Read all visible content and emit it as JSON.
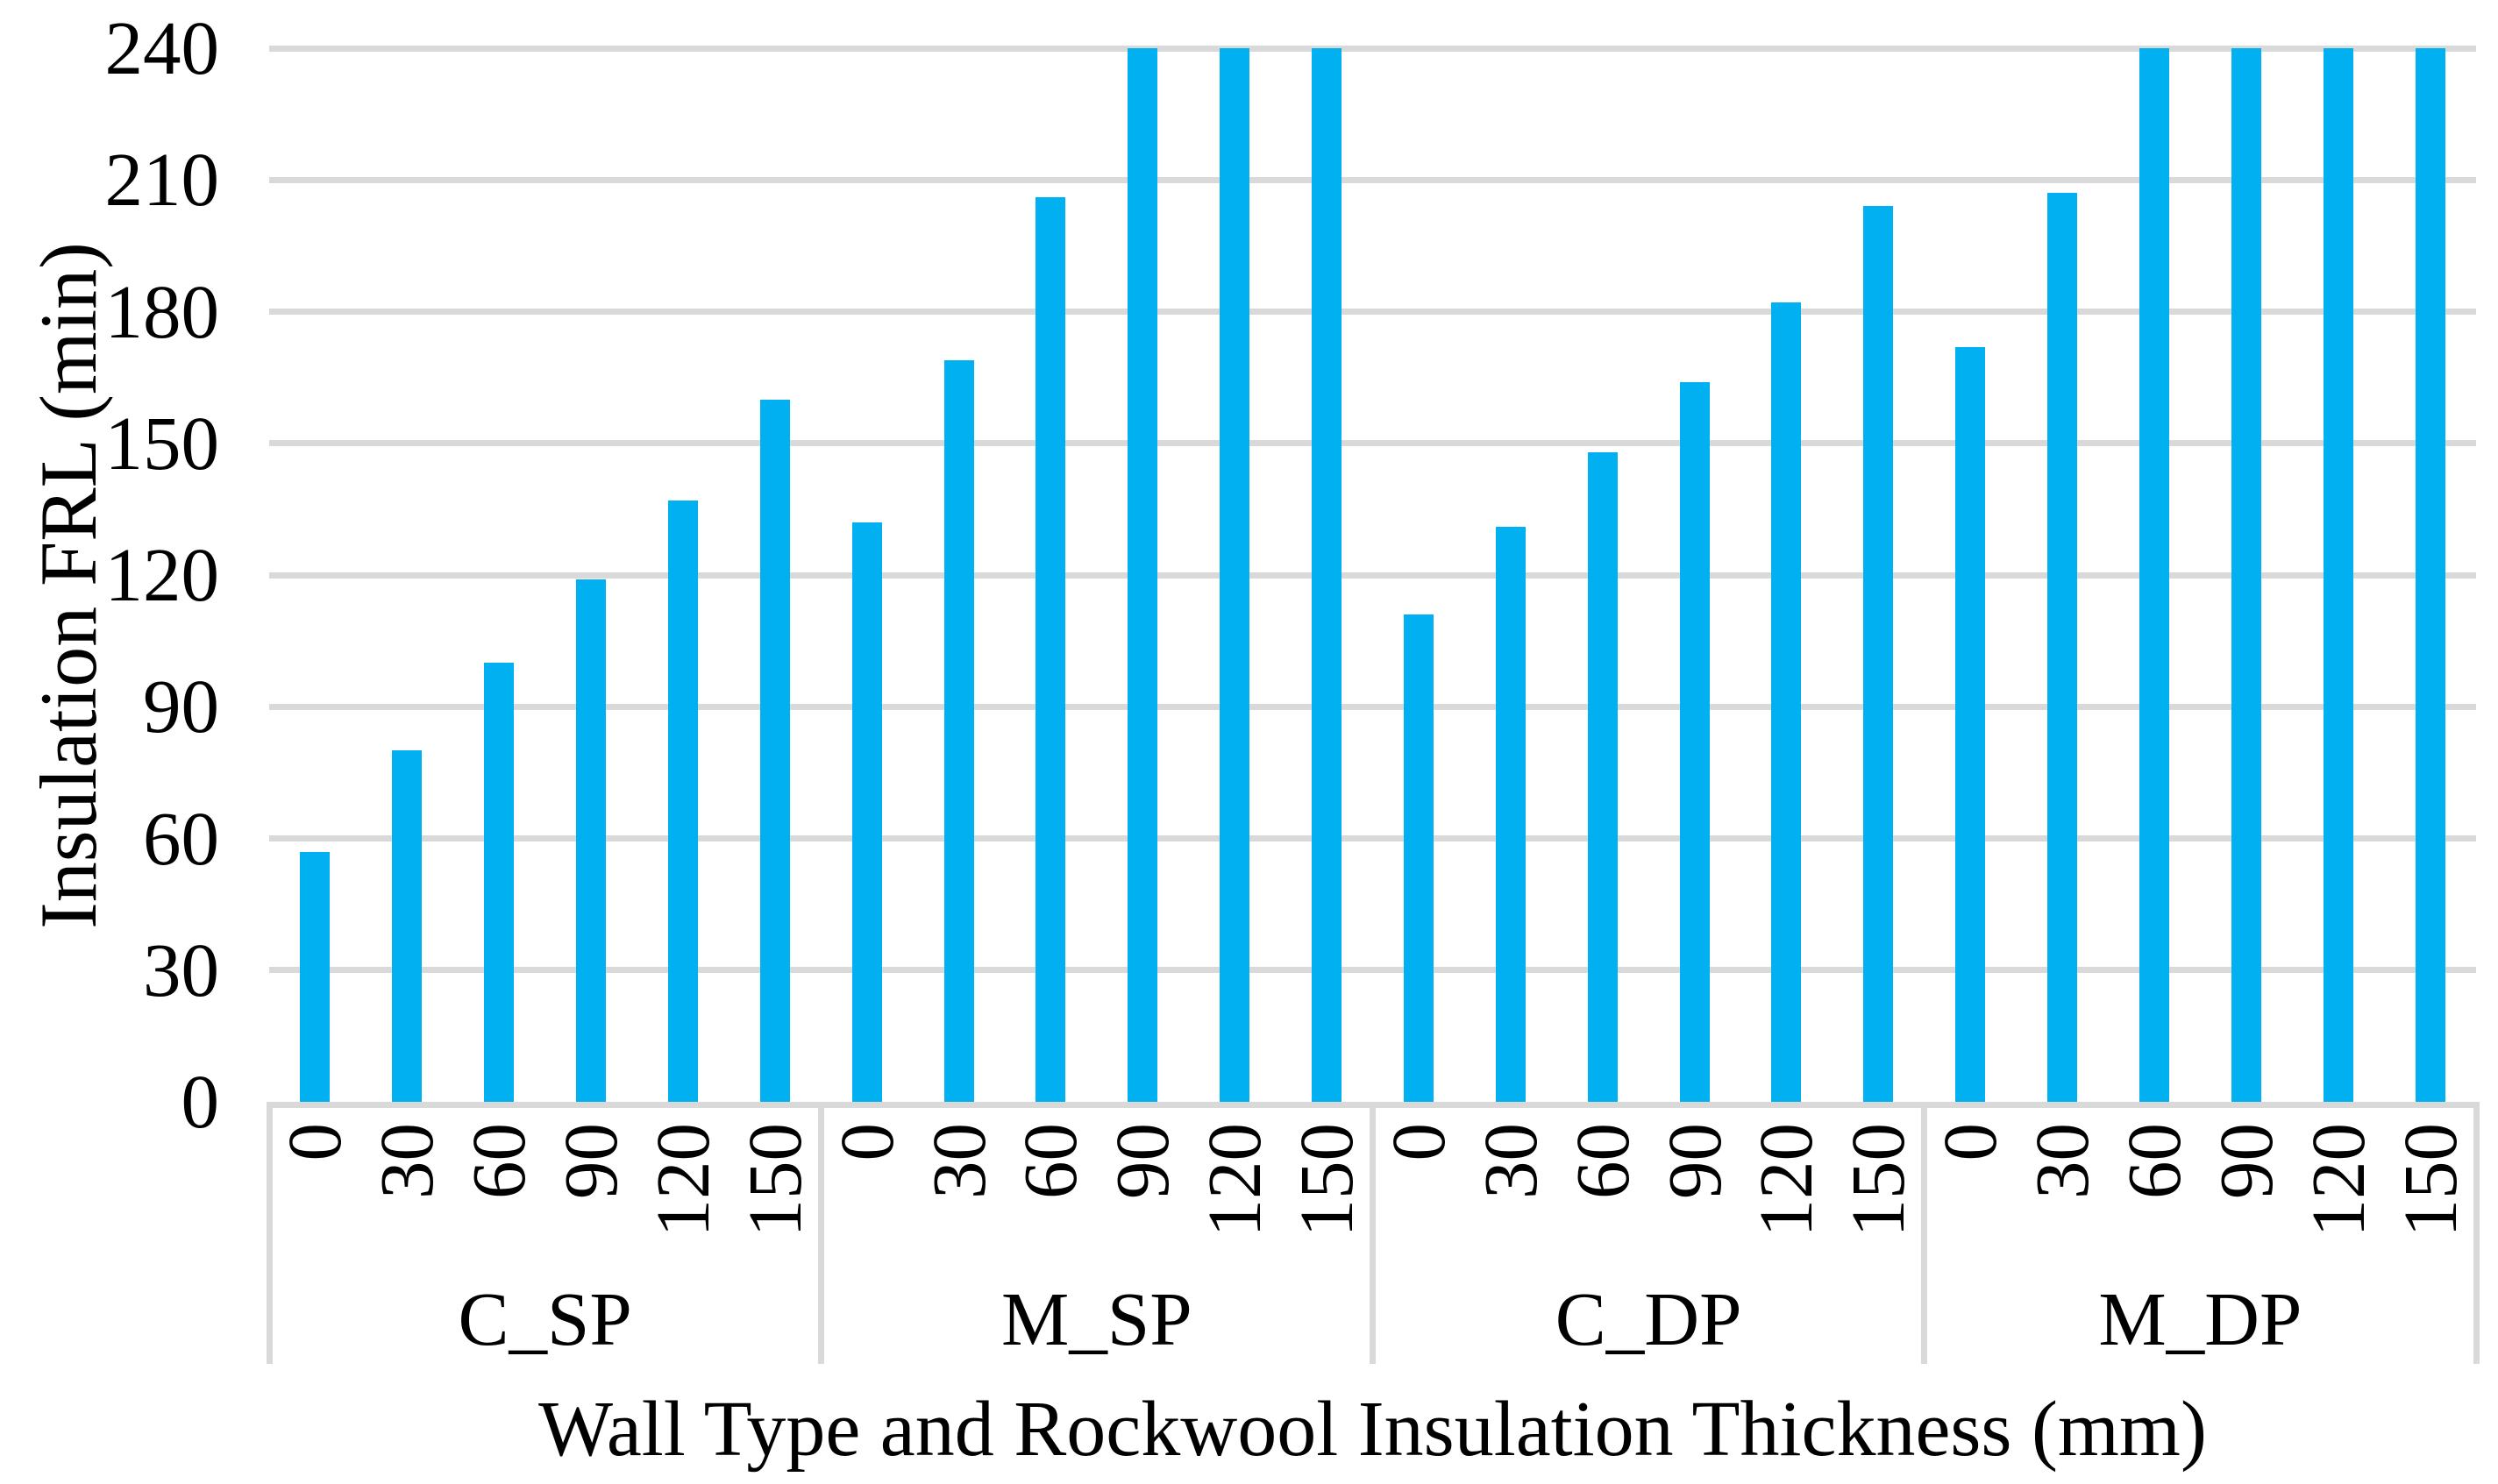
{
  "figure": {
    "background": "#FFFFFF",
    "text_color": "#000000"
  },
  "chart_data": {
    "type": "bar",
    "title": "",
    "xlabel": "Wall Type and Rockwool Insulation Thickness (mm)",
    "ylabel": "Insulation FRL (min)",
    "ylim": [
      0,
      240
    ],
    "yticks": [
      0,
      30,
      60,
      90,
      120,
      150,
      180,
      210,
      240
    ],
    "grid": "horizontal",
    "legend": false,
    "bar_color": "#00B0F0",
    "gridline_color": "#D9D9D9",
    "categories_level1": [
      "0",
      "30",
      "60",
      "90",
      "120",
      "150"
    ],
    "groups": [
      {
        "label": "C_SP",
        "values": [
          57,
          80,
          100,
          119,
          137,
          160
        ]
      },
      {
        "label": "M_SP",
        "values": [
          132,
          169,
          206,
          240,
          240,
          240
        ]
      },
      {
        "label": "C_DP",
        "values": [
          111,
          131,
          148,
          164,
          182,
          204
        ]
      },
      {
        "label": "M_DP",
        "values": [
          172,
          207,
          240,
          240,
          240,
          240
        ]
      }
    ]
  }
}
